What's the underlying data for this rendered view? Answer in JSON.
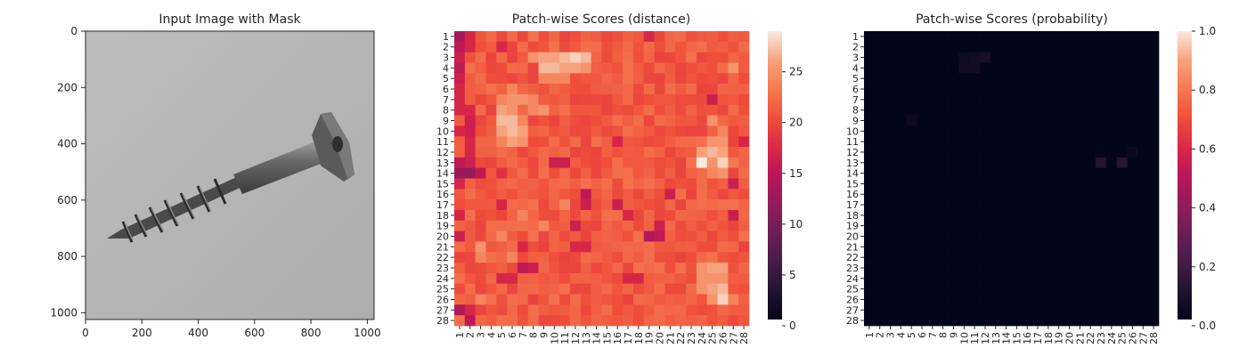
{
  "chart_data": [
    {
      "type": "image",
      "title": "Input Image with Mask",
      "xlabel": "",
      "ylabel": "",
      "xlim": [
        0,
        1024
      ],
      "ylim": [
        1024,
        0
      ],
      "x_ticks": [
        0,
        200,
        400,
        600,
        800,
        1000
      ],
      "y_ticks": [
        0,
        200,
        400,
        600,
        800,
        1000
      ],
      "subject": "screw"
    },
    {
      "type": "heatmap",
      "title": "Patch-wise Scores (distance)",
      "rows": 28,
      "cols": 28,
      "x_ticks": [
        "1",
        "2",
        "3",
        "4",
        "5",
        "6",
        "7",
        "8",
        "9",
        "10",
        "11",
        "12",
        "13",
        "14",
        "15",
        "16",
        "17",
        "18",
        "19",
        "20",
        "21",
        "22",
        "23",
        "24",
        "25",
        "26",
        "27",
        "28"
      ],
      "y_ticks": [
        "1",
        "2",
        "3",
        "4",
        "5",
        "6",
        "7",
        "8",
        "9",
        "10",
        "11",
        "12",
        "13",
        "14",
        "15",
        "16",
        "17",
        "18",
        "19",
        "20",
        "21",
        "22",
        "23",
        "24",
        "25",
        "26",
        "27",
        "28"
      ],
      "colorbar": {
        "min": 0,
        "max": 29,
        "ticks": [
          0,
          5,
          10,
          15,
          20,
          25
        ]
      },
      "base_value": 21,
      "cells": [
        {
          "r": 1,
          "c": 1,
          "v": 13
        },
        {
          "r": 1,
          "c": 2,
          "v": 17
        },
        {
          "r": 1,
          "c": 19,
          "v": 17
        },
        {
          "r": 2,
          "c": 1,
          "v": 15
        },
        {
          "r": 2,
          "c": 2,
          "v": 17
        },
        {
          "r": 2,
          "c": 5,
          "v": 17
        },
        {
          "r": 3,
          "c": 1,
          "v": 16
        },
        {
          "r": 3,
          "c": 8,
          "v": 25
        },
        {
          "r": 3,
          "c": 9,
          "v": 26
        },
        {
          "r": 3,
          "c": 10,
          "v": 26
        },
        {
          "r": 3,
          "c": 11,
          "v": 27
        },
        {
          "r": 3,
          "c": 12,
          "v": 28
        },
        {
          "r": 3,
          "c": 13,
          "v": 27
        },
        {
          "r": 4,
          "c": 1,
          "v": 15
        },
        {
          "r": 4,
          "c": 9,
          "v": 27
        },
        {
          "r": 4,
          "c": 10,
          "v": 27
        },
        {
          "r": 4,
          "c": 11,
          "v": 26
        },
        {
          "r": 4,
          "c": 12,
          "v": 26
        },
        {
          "r": 4,
          "c": 13,
          "v": 25
        },
        {
          "r": 4,
          "c": 27,
          "v": 25
        },
        {
          "r": 5,
          "c": 1,
          "v": 16
        },
        {
          "r": 5,
          "c": 9,
          "v": 24
        },
        {
          "r": 5,
          "c": 10,
          "v": 24
        },
        {
          "r": 5,
          "c": 11,
          "v": 24
        },
        {
          "r": 6,
          "c": 1,
          "v": 17
        },
        {
          "r": 6,
          "c": 6,
          "v": 24
        },
        {
          "r": 7,
          "c": 1,
          "v": 17
        },
        {
          "r": 7,
          "c": 5,
          "v": 24
        },
        {
          "r": 7,
          "c": 6,
          "v": 25
        },
        {
          "r": 7,
          "c": 7,
          "v": 25
        },
        {
          "r": 7,
          "c": 8,
          "v": 24
        },
        {
          "r": 7,
          "c": 25,
          "v": 16
        },
        {
          "r": 8,
          "c": 1,
          "v": 17
        },
        {
          "r": 8,
          "c": 2,
          "v": 17
        },
        {
          "r": 8,
          "c": 5,
          "v": 26
        },
        {
          "r": 8,
          "c": 6,
          "v": 25
        },
        {
          "r": 8,
          "c": 8,
          "v": 24
        },
        {
          "r": 8,
          "c": 9,
          "v": 25
        },
        {
          "r": 9,
          "c": 2,
          "v": 16
        },
        {
          "r": 9,
          "c": 5,
          "v": 27
        },
        {
          "r": 9,
          "c": 6,
          "v": 27
        },
        {
          "r": 9,
          "c": 7,
          "v": 24
        },
        {
          "r": 9,
          "c": 25,
          "v": 25
        },
        {
          "r": 10,
          "c": 1,
          "v": 17
        },
        {
          "r": 10,
          "c": 2,
          "v": 16
        },
        {
          "r": 10,
          "c": 5,
          "v": 26
        },
        {
          "r": 10,
          "c": 6,
          "v": 27
        },
        {
          "r": 10,
          "c": 7,
          "v": 26
        },
        {
          "r": 10,
          "c": 26,
          "v": 24
        },
        {
          "r": 11,
          "c": 2,
          "v": 17
        },
        {
          "r": 11,
          "c": 5,
          "v": 24
        },
        {
          "r": 11,
          "c": 6,
          "v": 26
        },
        {
          "r": 11,
          "c": 7,
          "v": 25
        },
        {
          "r": 11,
          "c": 16,
          "v": 17
        },
        {
          "r": 11,
          "c": 25,
          "v": 25
        },
        {
          "r": 11,
          "c": 26,
          "v": 25
        },
        {
          "r": 11,
          "c": 28,
          "v": 17
        },
        {
          "r": 12,
          "c": 2,
          "v": 17
        },
        {
          "r": 12,
          "c": 24,
          "v": 26
        },
        {
          "r": 12,
          "c": 25,
          "v": 27
        },
        {
          "r": 12,
          "c": 26,
          "v": 26
        },
        {
          "r": 13,
          "c": 1,
          "v": 15
        },
        {
          "r": 13,
          "c": 2,
          "v": 16
        },
        {
          "r": 13,
          "c": 10,
          "v": 16
        },
        {
          "r": 13,
          "c": 11,
          "v": 16
        },
        {
          "r": 13,
          "c": 24,
          "v": 29
        },
        {
          "r": 13,
          "c": 25,
          "v": 25
        },
        {
          "r": 13,
          "c": 26,
          "v": 28
        },
        {
          "r": 13,
          "c": 27,
          "v": 23
        },
        {
          "r": 14,
          "c": 1,
          "v": 12
        },
        {
          "r": 14,
          "c": 2,
          "v": 12
        },
        {
          "r": 14,
          "c": 3,
          "v": 15
        },
        {
          "r": 14,
          "c": 5,
          "v": 18
        },
        {
          "r": 14,
          "c": 25,
          "v": 24
        },
        {
          "r": 14,
          "c": 26,
          "v": 25
        },
        {
          "r": 15,
          "c": 1,
          "v": 17
        },
        {
          "r": 15,
          "c": 27,
          "v": 16
        },
        {
          "r": 16,
          "c": 13,
          "v": 15
        },
        {
          "r": 16,
          "c": 21,
          "v": 16
        },
        {
          "r": 17,
          "c": 5,
          "v": 17
        },
        {
          "r": 17,
          "c": 11,
          "v": 24
        },
        {
          "r": 17,
          "c": 13,
          "v": 16
        },
        {
          "r": 17,
          "c": 16,
          "v": 16
        },
        {
          "r": 18,
          "c": 1,
          "v": 17
        },
        {
          "r": 18,
          "c": 7,
          "v": 24
        },
        {
          "r": 18,
          "c": 17,
          "v": 17
        },
        {
          "r": 18,
          "c": 27,
          "v": 16
        },
        {
          "r": 19,
          "c": 9,
          "v": 24
        },
        {
          "r": 19,
          "c": 12,
          "v": 16
        },
        {
          "r": 19,
          "c": 20,
          "v": 16
        },
        {
          "r": 20,
          "c": 1,
          "v": 16
        },
        {
          "r": 20,
          "c": 5,
          "v": 24
        },
        {
          "r": 20,
          "c": 19,
          "v": 14
        },
        {
          "r": 20,
          "c": 20,
          "v": 15
        },
        {
          "r": 21,
          "c": 3,
          "v": 25
        },
        {
          "r": 21,
          "c": 7,
          "v": 17
        },
        {
          "r": 21,
          "c": 12,
          "v": 17
        },
        {
          "r": 21,
          "c": 13,
          "v": 17
        },
        {
          "r": 22,
          "c": 3,
          "v": 24
        },
        {
          "r": 22,
          "c": 6,
          "v": 24
        },
        {
          "r": 23,
          "c": 7,
          "v": 15
        },
        {
          "r": 23,
          "c": 8,
          "v": 16
        },
        {
          "r": 23,
          "c": 24,
          "v": 25
        },
        {
          "r": 23,
          "c": 25,
          "v": 26
        },
        {
          "r": 23,
          "c": 26,
          "v": 26
        },
        {
          "r": 24,
          "c": 5,
          "v": 17
        },
        {
          "r": 24,
          "c": 6,
          "v": 17
        },
        {
          "r": 24,
          "c": 17,
          "v": 17
        },
        {
          "r": 24,
          "c": 18,
          "v": 17
        },
        {
          "r": 24,
          "c": 24,
          "v": 25
        },
        {
          "r": 24,
          "c": 25,
          "v": 25
        },
        {
          "r": 24,
          "c": 26,
          "v": 25
        },
        {
          "r": 25,
          "c": 24,
          "v": 25
        },
        {
          "r": 25,
          "c": 25,
          "v": 26
        },
        {
          "r": 25,
          "c": 26,
          "v": 27
        },
        {
          "r": 26,
          "c": 3,
          "v": 24
        },
        {
          "r": 26,
          "c": 25,
          "v": 25
        },
        {
          "r": 26,
          "c": 26,
          "v": 28
        },
        {
          "r": 26,
          "c": 27,
          "v": 24
        },
        {
          "r": 27,
          "c": 1,
          "v": 14
        },
        {
          "r": 27,
          "c": 2,
          "v": 17
        },
        {
          "r": 28,
          "c": 2,
          "v": 15
        }
      ]
    },
    {
      "type": "heatmap",
      "title": "Patch-wise Scores (probability)",
      "rows": 28,
      "cols": 28,
      "x_ticks": [
        "1",
        "2",
        "3",
        "4",
        "5",
        "6",
        "7",
        "8",
        "9",
        "10",
        "11",
        "12",
        "13",
        "14",
        "15",
        "16",
        "17",
        "18",
        "19",
        "20",
        "21",
        "22",
        "23",
        "24",
        "25",
        "26",
        "27",
        "28"
      ],
      "y_ticks": [
        "1",
        "2",
        "3",
        "4",
        "5",
        "6",
        "7",
        "8",
        "9",
        "10",
        "11",
        "12",
        "13",
        "14",
        "15",
        "16",
        "17",
        "18",
        "19",
        "20",
        "21",
        "22",
        "23",
        "24",
        "25",
        "26",
        "27",
        "28"
      ],
      "colorbar": {
        "min": 0,
        "max": 1,
        "ticks": [
          0.0,
          0.2,
          0.4,
          0.6,
          0.8,
          1.0
        ]
      },
      "tick_labels": [
        "0.0",
        "0.2",
        "0.4",
        "0.6",
        "0.8",
        "1.0"
      ],
      "base_value": 0.0,
      "cells": [
        {
          "r": 3,
          "c": 10,
          "v": 0.04
        },
        {
          "r": 3,
          "c": 11,
          "v": 0.05
        },
        {
          "r": 3,
          "c": 12,
          "v": 0.06
        },
        {
          "r": 4,
          "c": 10,
          "v": 0.05
        },
        {
          "r": 4,
          "c": 11,
          "v": 0.05
        },
        {
          "r": 9,
          "c": 5,
          "v": 0.03
        },
        {
          "r": 12,
          "c": 26,
          "v": 0.03
        },
        {
          "r": 13,
          "c": 23,
          "v": 0.1
        },
        {
          "r": 13,
          "c": 25,
          "v": 0.12
        }
      ]
    }
  ]
}
